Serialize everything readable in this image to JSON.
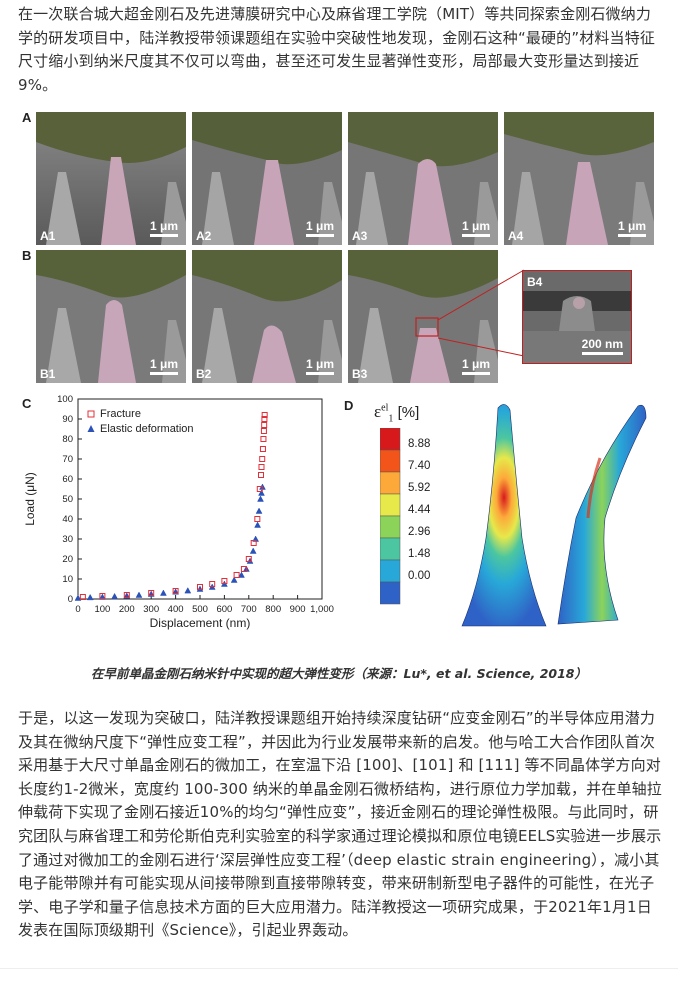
{
  "article": {
    "paragraph1": "在一次联合城大超金刚石及先进薄膜研究中心及麻省理工学院（MIT）等共同探索金刚石微纳力学的研发项目中，陆洋教授带领课题组在实验中突破性地发现，金刚石这种“最硬的”材料当特征尺寸缩小到纳米尺度其不仅可以弯曲，甚至还可发生显著弹性变形，局部最大变形量达到接近9%。",
    "caption": "在早前单晶金刚石纳米针中实现的超大弹性变形（来源：Lu*, et al. Science, 2018）",
    "paragraph2": "于是，以这一发现为突破口，陆洋教授课题组开始持续深度钻研“应变金刚石”的半导体应用潜力及其在微纳尺度下“弹性应变工程”，并因此为行业发展带来新的启发。他与哈工大合作团队首次采用基于大尺寸单晶金刚石的微加工，在室温下沿 [100]、[101] 和 [111] 等不同晶体学方向对长度约1-2微米，宽度约 100-300 纳米的单晶金刚石微桥结构，进行原位力学加载，并在单轴拉伸载荷下实现了金刚石接近10%的均匀“弹性应变”，接近金刚石的理论弹性极限。与此同时，研究团队与麻省理工和劳伦斯伯克利实验室的科学家通过理论模拟和原位电镜EELS实验进一步展示了通过对微加工的金刚石进行‘深层弹性应变工程’（deep elastic strain engineering），减小其电子能带隙并有可能实现从间接带隙到直接带隙转变，带来研制新型电子器件的可能性，在光子学、电子学和量子信息技术方面的巨大应用潜力。陆洋教授这一项研究成果，于2021年1月1日发表在国际顶级期刊《Science》，引起业界轰动。"
  },
  "figure": {
    "panel_letters": [
      "A",
      "B",
      "C",
      "D"
    ],
    "sem_row_a": [
      {
        "label": "A1",
        "scale": "1 μm"
      },
      {
        "label": "A2",
        "scale": "1 μm"
      },
      {
        "label": "A3",
        "scale": "1 μm"
      },
      {
        "label": "A4",
        "scale": "1 μm"
      }
    ],
    "sem_row_b": [
      {
        "label": "B1",
        "scale": "1 μm"
      },
      {
        "label": "B2",
        "scale": "1 μm"
      },
      {
        "label": "B3",
        "scale": "1 μm"
      }
    ],
    "inset": {
      "label": "B4",
      "scale": "200 nm"
    },
    "colorbar": {
      "title": "ε",
      "title_sup": "el",
      "title_sub": "1",
      "unit": "[%]",
      "ticks": [
        "8.88",
        "7.40",
        "5.92",
        "4.44",
        "2.96",
        "1.48",
        "0.00"
      ],
      "colors": [
        "#d7191c",
        "#f2541a",
        "#fda93a",
        "#e7e84a",
        "#8cd35a",
        "#4cc6a0",
        "#28a8d8",
        "#2f62c6"
      ]
    }
  },
  "chart_data": {
    "type": "scatter",
    "xlabel": "Displacement (nm)",
    "ylabel": "Load (μN)",
    "xlim": [
      0,
      1000
    ],
    "ylim": [
      0,
      100
    ],
    "xticks": [
      "0",
      "100",
      "200",
      "300",
      "400",
      "500",
      "600",
      "700",
      "800",
      "900",
      "1,000"
    ],
    "yticks": [
      "0",
      "10",
      "20",
      "30",
      "40",
      "50",
      "60",
      "70",
      "80",
      "90",
      "100"
    ],
    "legend_position": "top-left",
    "series": [
      {
        "name": "Fracture",
        "marker": "square",
        "color": "#e0303a",
        "x": [
          20,
          100,
          200,
          300,
          400,
          500,
          550,
          600,
          650,
          680,
          700,
          720,
          735,
          745,
          750,
          752,
          755,
          758,
          760,
          762,
          763,
          764,
          765
        ],
        "y": [
          1,
          1.5,
          2,
          3,
          4,
          6,
          7.5,
          9,
          12,
          15,
          20,
          28,
          40,
          55,
          62,
          66,
          70,
          75,
          80,
          84,
          87,
          90,
          92
        ]
      },
      {
        "name": "Elastic deformation",
        "marker": "triangle",
        "color": "#2b52b8",
        "x": [
          0,
          50,
          100,
          150,
          200,
          250,
          300,
          350,
          400,
          450,
          500,
          550,
          600,
          640,
          670,
          690,
          705,
          718,
          728,
          736,
          742,
          748,
          752,
          756
        ],
        "y": [
          0.5,
          0.8,
          1,
          1.3,
          1.6,
          2,
          2.5,
          3,
          3.6,
          4.2,
          5,
          6,
          7.5,
          9.5,
          12,
          15,
          19,
          24,
          30,
          37,
          44,
          50,
          53,
          56
        ]
      }
    ]
  }
}
